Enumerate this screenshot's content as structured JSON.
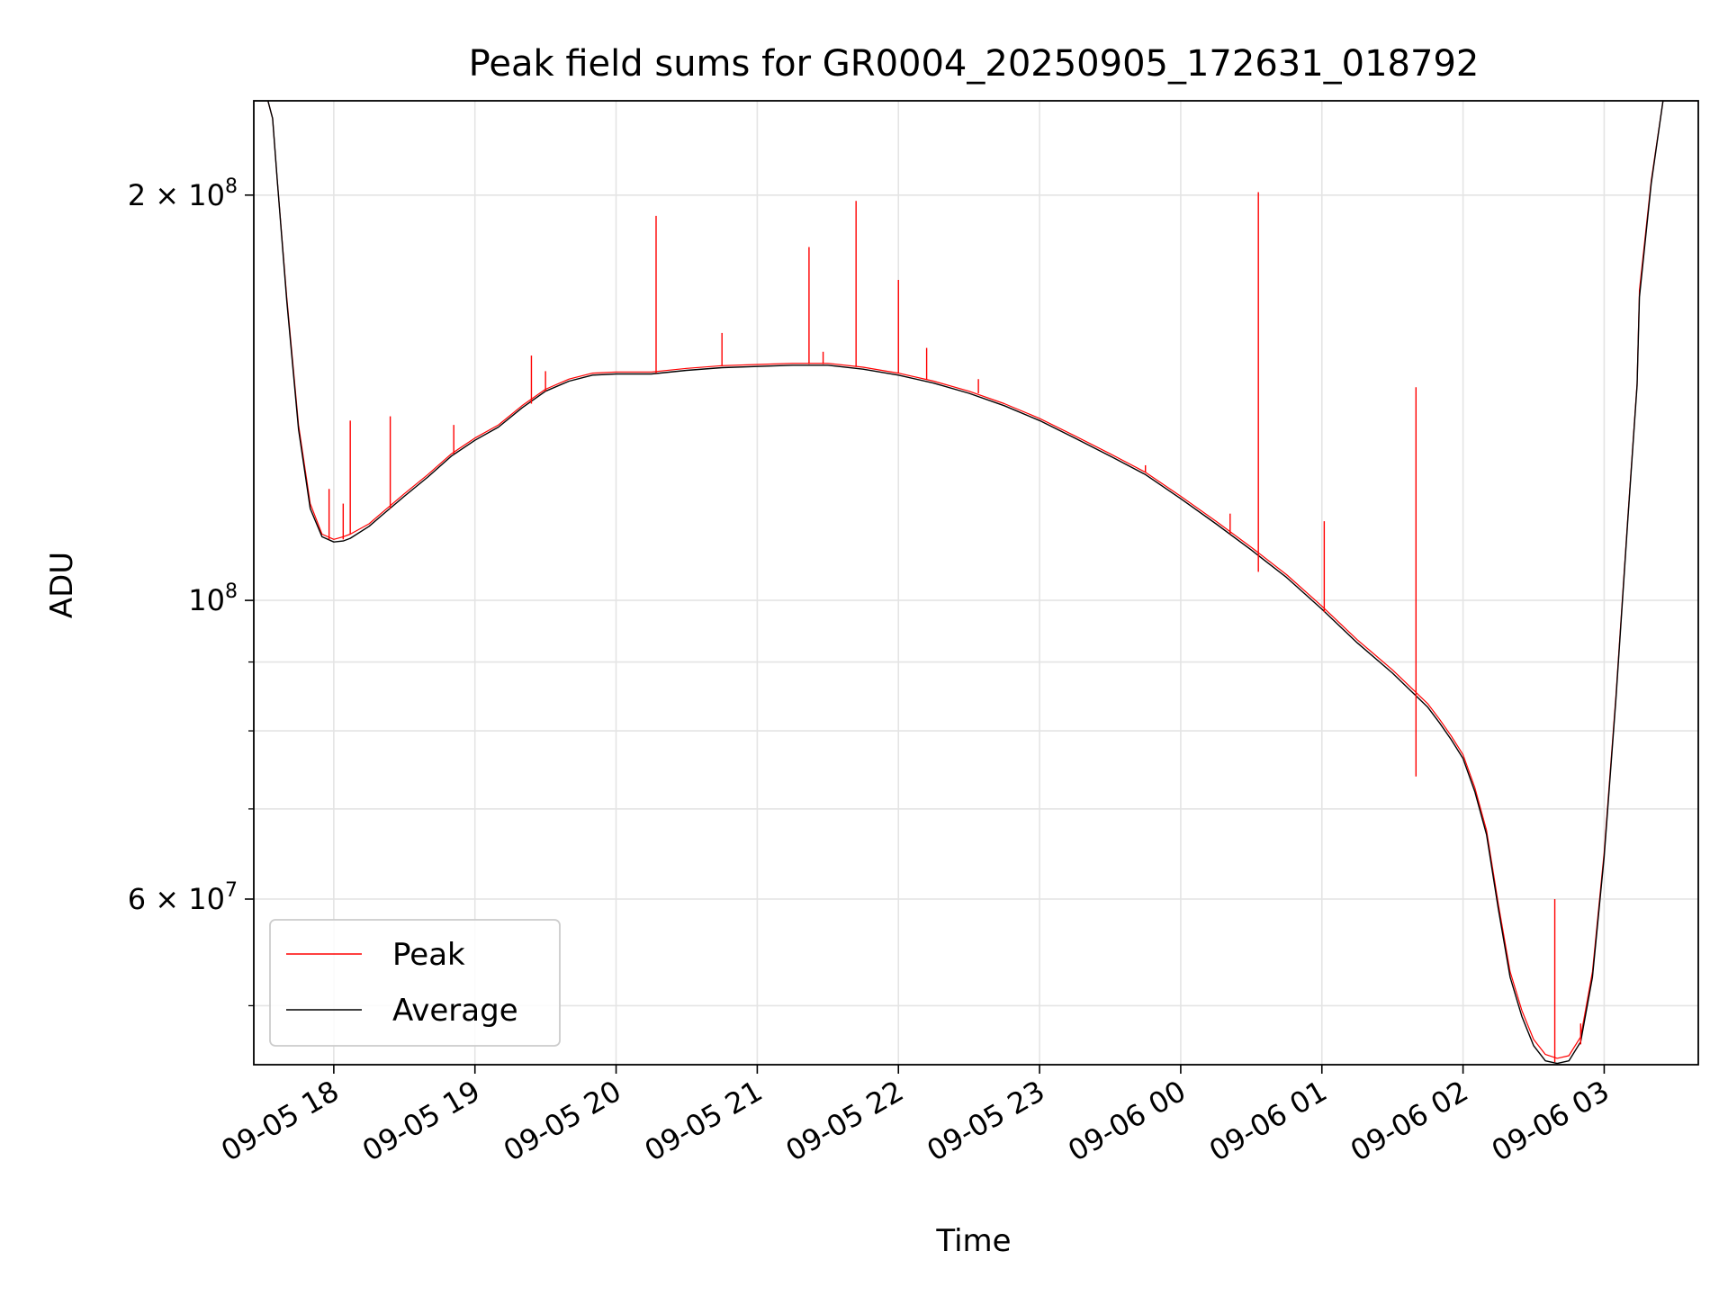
{
  "chart_data": {
    "type": "line",
    "title": "Peak field sums for GR0004_20250905_172631_018792",
    "xlabel": "Time",
    "ylabel": "ADU",
    "yscale": "log",
    "xlim": [
      "2025-09-05 17:26",
      "2025-09-06 03:40"
    ],
    "ylim": [
      45200000,
      235000000
    ],
    "grid": true,
    "legend_position": "lower-left",
    "x_ticks": [
      {
        "t": "2025-09-05 18:00",
        "label": "09-05 18"
      },
      {
        "t": "2025-09-05 19:00",
        "label": "09-05 19"
      },
      {
        "t": "2025-09-05 20:00",
        "label": "09-05 20"
      },
      {
        "t": "2025-09-05 21:00",
        "label": "09-05 21"
      },
      {
        "t": "2025-09-05 22:00",
        "label": "09-05 22"
      },
      {
        "t": "2025-09-05 23:00",
        "label": "09-05 23"
      },
      {
        "t": "2025-09-06 00:00",
        "label": "09-06 00"
      },
      {
        "t": "2025-09-06 01:00",
        "label": "09-06 01"
      },
      {
        "t": "2025-09-06 02:00",
        "label": "09-06 02"
      },
      {
        "t": "2025-09-06 03:00",
        "label": "09-06 03"
      }
    ],
    "y_ticks_major": [
      {
        "value": 60000000,
        "mantissa": "6",
        "exponent": "7"
      },
      {
        "value": 100000000,
        "mantissa": "",
        "exponent": "8"
      },
      {
        "value": 200000000,
        "mantissa": "2",
        "exponent": "8"
      }
    ],
    "y_ticks_minor": [
      50000000,
      70000000,
      80000000,
      90000000
    ],
    "series": [
      {
        "name": "Peak",
        "color": "#ff0000",
        "x": [
          "2025-09-05 17:26",
          "2025-09-05 17:32",
          "2025-09-05 17:34",
          "2025-09-05 17:36",
          "2025-09-05 17:40",
          "2025-09-05 17:45",
          "2025-09-05 17:50",
          "2025-09-05 17:55",
          "2025-09-05 18:00",
          "2025-09-05 18:04",
          "2025-09-05 18:07",
          "2025-09-05 18:15",
          "2025-09-05 18:20",
          "2025-09-05 18:30",
          "2025-09-05 18:40",
          "2025-09-05 18:50",
          "2025-09-05 19:00",
          "2025-09-05 19:10",
          "2025-09-05 19:20",
          "2025-09-05 19:30",
          "2025-09-05 19:40",
          "2025-09-05 19:50",
          "2025-09-05 20:00",
          "2025-09-05 20:15",
          "2025-09-05 20:30",
          "2025-09-05 20:45",
          "2025-09-05 21:00",
          "2025-09-05 21:15",
          "2025-09-05 21:30",
          "2025-09-05 21:45",
          "2025-09-05 22:00",
          "2025-09-05 22:15",
          "2025-09-05 22:30",
          "2025-09-05 22:45",
          "2025-09-05 23:00",
          "2025-09-05 23:15",
          "2025-09-05 23:30",
          "2025-09-05 23:45",
          "2025-09-06 00:00",
          "2025-09-06 00:15",
          "2025-09-06 00:30",
          "2025-09-06 00:45",
          "2025-09-06 01:00",
          "2025-09-06 01:15",
          "2025-09-06 01:30",
          "2025-09-06 01:45",
          "2025-09-06 01:50",
          "2025-09-06 01:55",
          "2025-09-06 02:00",
          "2025-09-06 02:05",
          "2025-09-06 02:10",
          "2025-09-06 02:15",
          "2025-09-06 02:20",
          "2025-09-06 02:25",
          "2025-09-06 02:30",
          "2025-09-06 02:35",
          "2025-09-06 02:40",
          "2025-09-06 02:45",
          "2025-09-06 02:50",
          "2025-09-06 02:55",
          "2025-09-06 03:00",
          "2025-09-06 03:05",
          "2025-09-06 03:10",
          "2025-09-06 03:14",
          "2025-09-06 03:15",
          "2025-09-06 03:20",
          "2025-09-06 03:25",
          "2025-09-06 03:30",
          "2025-09-06 03:40"
        ],
        "y": [
          235000000,
          235000000,
          228000000,
          205000000,
          168000000,
          135000000,
          118000000,
          112000000,
          111000000,
          111500000,
          112000000,
          114000000,
          116000000,
          120000000,
          124000000,
          128500000,
          132000000,
          135000000,
          139500000,
          143500000,
          146000000,
          147500000,
          147800000,
          147800000,
          148700000,
          149400000,
          149700000,
          150000000,
          150000000,
          149000000,
          147500000,
          145500000,
          143000000,
          140000000,
          136500000,
          132500000,
          128500000,
          124500000,
          119500000,
          114500000,
          109500000,
          104500000,
          99000000,
          93500000,
          88800000,
          83800000,
          81600000,
          79300000,
          76800000,
          72600000,
          67500000,
          59500000,
          53000000,
          49600000,
          47200000,
          46000000,
          45700000,
          45900000,
          47400000,
          53000000,
          65000000,
          85000000,
          115000000,
          145000000,
          170000000,
          205000000,
          235000000,
          235000000,
          235000000
        ]
      },
      {
        "name": "Average",
        "color": "#000000",
        "x": [
          "2025-09-05 17:26",
          "2025-09-05 17:32",
          "2025-09-05 17:34",
          "2025-09-05 17:36",
          "2025-09-05 17:40",
          "2025-09-05 17:45",
          "2025-09-05 17:50",
          "2025-09-05 17:55",
          "2025-09-05 18:00",
          "2025-09-05 18:04",
          "2025-09-05 18:07",
          "2025-09-05 18:15",
          "2025-09-05 18:20",
          "2025-09-05 18:30",
          "2025-09-05 18:40",
          "2025-09-05 18:50",
          "2025-09-05 19:00",
          "2025-09-05 19:10",
          "2025-09-05 19:20",
          "2025-09-05 19:30",
          "2025-09-05 19:40",
          "2025-09-05 19:50",
          "2025-09-05 20:00",
          "2025-09-05 20:15",
          "2025-09-05 20:30",
          "2025-09-05 20:45",
          "2025-09-05 21:00",
          "2025-09-05 21:15",
          "2025-09-05 21:30",
          "2025-09-05 21:45",
          "2025-09-05 22:00",
          "2025-09-05 22:15",
          "2025-09-05 22:30",
          "2025-09-05 22:45",
          "2025-09-05 23:00",
          "2025-09-05 23:15",
          "2025-09-05 23:30",
          "2025-09-05 23:45",
          "2025-09-06 00:00",
          "2025-09-06 00:15",
          "2025-09-06 00:30",
          "2025-09-06 00:45",
          "2025-09-06 01:00",
          "2025-09-06 01:15",
          "2025-09-06 01:30",
          "2025-09-06 01:45",
          "2025-09-06 01:50",
          "2025-09-06 01:55",
          "2025-09-06 02:00",
          "2025-09-06 02:05",
          "2025-09-06 02:10",
          "2025-09-06 02:15",
          "2025-09-06 02:20",
          "2025-09-06 02:25",
          "2025-09-06 02:30",
          "2025-09-06 02:35",
          "2025-09-06 02:40",
          "2025-09-06 02:45",
          "2025-09-06 02:50",
          "2025-09-06 02:55",
          "2025-09-06 03:00",
          "2025-09-06 03:05",
          "2025-09-06 03:10",
          "2025-09-06 03:14",
          "2025-09-06 03:15",
          "2025-09-06 03:20",
          "2025-09-06 03:25",
          "2025-09-06 03:30",
          "2025-09-06 03:40"
        ],
        "y": [
          235000000,
          235000000,
          228000000,
          205000000,
          167000000,
          134000000,
          117000000,
          111500000,
          110500000,
          110700000,
          111200000,
          113500000,
          115500000,
          119500000,
          123500000,
          128000000,
          131500000,
          134500000,
          139000000,
          143000000,
          145500000,
          147000000,
          147300000,
          147300000,
          148200000,
          148900000,
          149200000,
          149500000,
          149500000,
          148500000,
          147000000,
          145000000,
          142500000,
          139500000,
          136000000,
          132000000,
          128000000,
          124000000,
          119000000,
          114000000,
          109000000,
          104000000,
          98500000,
          93000000,
          88300000,
          83300000,
          81100000,
          78800000,
          76300000,
          72100000,
          67000000,
          59000000,
          52500000,
          49100000,
          46700000,
          45500000,
          45300000,
          45500000,
          47000000,
          52500000,
          64500000,
          84500000,
          114500000,
          144500000,
          168000000,
          204000000,
          235000000,
          235000000,
          235000000
        ]
      }
    ],
    "spikes": [
      {
        "t": "2025-09-05 17:58",
        "peak": 121000000,
        "average": 111000000
      },
      {
        "t": "2025-09-05 18:04",
        "peak": 118000000,
        "average": 111000000
      },
      {
        "t": "2025-09-05 18:07",
        "peak": 136000000,
        "average": 112000000
      },
      {
        "t": "2025-09-05 18:24",
        "peak": 137000000,
        "average": 117000000
      },
      {
        "t": "2025-09-05 18:51",
        "peak": 135000000,
        "average": 128500000
      },
      {
        "t": "2025-09-05 19:24",
        "peak": 152000000,
        "average": 140000000
      },
      {
        "t": "2025-09-05 19:30",
        "peak": 148000000,
        "average": 143000000
      },
      {
        "t": "2025-09-05 20:17",
        "peak": 193000000,
        "average": 147500000
      },
      {
        "t": "2025-09-05 20:45",
        "peak": 158000000,
        "average": 149400000
      },
      {
        "t": "2025-09-05 21:22",
        "peak": 183000000,
        "average": 149800000
      },
      {
        "t": "2025-09-05 21:28",
        "peak": 153000000,
        "average": 149800000
      },
      {
        "t": "2025-09-05 21:42",
        "peak": 198000000,
        "average": 149100000
      },
      {
        "t": "2025-09-05 22:00",
        "peak": 173000000,
        "average": 147500000
      },
      {
        "t": "2025-09-05 22:12",
        "peak": 154000000,
        "average": 145800000
      },
      {
        "t": "2025-09-05 22:34",
        "peak": 146000000,
        "average": 142500000
      },
      {
        "t": "2025-09-05 23:45",
        "peak": 126000000,
        "average": 124500000
      },
      {
        "t": "2025-09-06 00:21",
        "peak": 116000000,
        "average": 112000000
      },
      {
        "t": "2025-09-06 00:33",
        "peak": 201000000,
        "average": 105000000
      },
      {
        "t": "2025-09-06 01:01",
        "peak": 114500000,
        "average": 98000000
      },
      {
        "t": "2025-09-06 01:40",
        "peak": 144000000,
        "average": 74000000
      },
      {
        "t": "2025-09-06 02:39",
        "peak": 60000000,
        "average": 45400000
      },
      {
        "t": "2025-09-06 02:50",
        "peak": 48500000,
        "average": 46800000
      }
    ]
  }
}
